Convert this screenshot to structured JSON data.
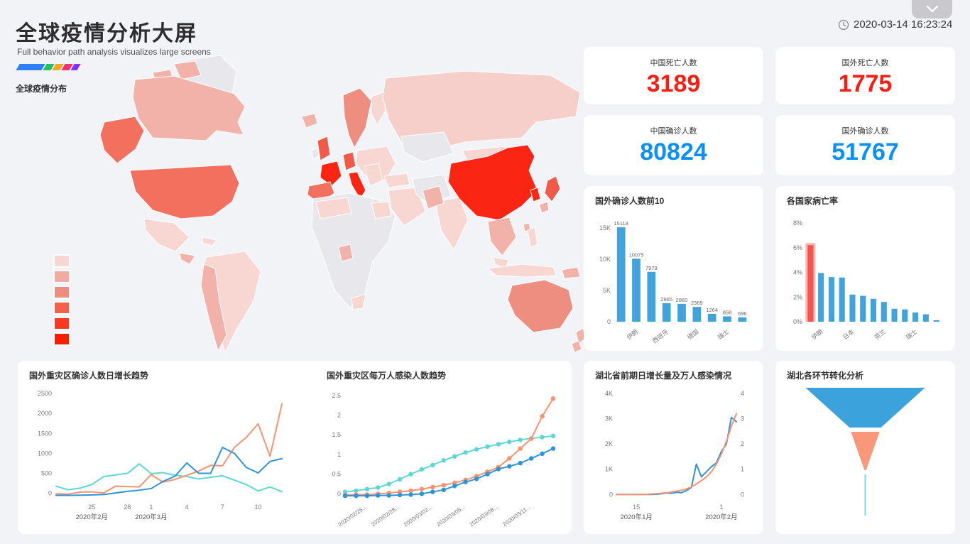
{
  "header": {
    "title": "全球疫情分析大屏",
    "subtitle": "Full behavior path analysis visualizes large screens",
    "section_label": "全球疫情分布",
    "timestamp": "2020-03-14 16:23:24"
  },
  "brand_bar_colors": [
    "#2f7ff7",
    "#22c35c",
    "#f5a623",
    "#f5326e",
    "#8b2ff5"
  ],
  "stats": [
    {
      "label": "中国死亡人数",
      "value": "3189",
      "color": "#fb1d10"
    },
    {
      "label": "国外死亡人数",
      "value": "1775",
      "color": "#fb1d10"
    },
    {
      "label": "中国确诊人数",
      "value": "80824",
      "color": "#0d90f5"
    },
    {
      "label": "国外确诊人数",
      "value": "51767",
      "color": "#0d90f5"
    }
  ],
  "map": {
    "legend_colors": [
      "#f8d6d2",
      "#f2aba3",
      "#ee8e80",
      "#f4604b",
      "#f93a20",
      "#f51f05"
    ]
  },
  "chart_data": [
    {
      "type": "bar",
      "title": "国外确诊人数前10",
      "categories": [
        "",
        "伊朗",
        "",
        "西班牙",
        "",
        "德国",
        "",
        "瑞士",
        ""
      ],
      "values": [
        15113,
        10075,
        7979,
        2965,
        2860,
        2369,
        1264,
        858,
        696
      ],
      "value_labels": [
        "15113",
        "10075",
        "7979",
        "2965",
        "2860",
        "2369",
        "1264",
        "858",
        "696"
      ],
      "yticks": [
        0,
        5000,
        10000,
        15000
      ],
      "ytick_labels": [
        "0",
        "5K",
        "10K",
        "15K"
      ],
      "ylim": [
        0,
        15800
      ],
      "bar_color": "#41a3dc",
      "show_values": true,
      "grid": false
    },
    {
      "type": "bar",
      "title": "各国家病亡率",
      "categories": [
        "",
        "伊朗",
        "",
        "",
        "日本",
        "",
        "",
        "荷兰",
        "",
        "",
        "瑞士",
        "",
        ""
      ],
      "values": [
        6.2,
        3.95,
        3.62,
        3.58,
        2.2,
        2.1,
        1.85,
        1.6,
        1.05,
        1.0,
        0.75,
        0.6,
        0.12
      ],
      "yticks": [
        0,
        2,
        4,
        6,
        8
      ],
      "ytick_labels": [
        "0%",
        "2%",
        "4%",
        "6%",
        "8%"
      ],
      "ylim": [
        0,
        8
      ],
      "bar_color": "#41a3dc",
      "show_values": false,
      "highlight": {
        "index": 0,
        "color": "#f4544e",
        "halo": "#fbb6b2"
      },
      "grid": false
    },
    {
      "type": "line",
      "title": "国外重灾区确诊人数日增长趋势",
      "x_count": 20,
      "xticks": [
        {
          "i": 3,
          "label": "25",
          "month": "2020年2月"
        },
        {
          "i": 6,
          "label": "28"
        },
        {
          "i": 8,
          "label": "1",
          "month": "2020年3月"
        },
        {
          "i": 11,
          "label": "4"
        },
        {
          "i": 14,
          "label": "7"
        },
        {
          "i": 17,
          "label": "10"
        }
      ],
      "yticks": [
        0,
        500,
        1000,
        1500,
        2000,
        2500
      ],
      "ytick_labels": [
        "0",
        "500",
        "1000",
        "1500",
        "2000",
        "2500"
      ],
      "ylim": [
        -130,
        2500
      ],
      "markers": false,
      "series": [
        {
          "color": "#5fd6d6",
          "values": [
            180,
            90,
            130,
            220,
            420,
            460,
            500,
            740,
            490,
            520,
            450,
            420,
            360,
            400,
            440,
            330,
            220,
            60,
            160,
            40
          ]
        },
        {
          "color": "#f8926f",
          "values": [
            -10,
            -20,
            30,
            40,
            10,
            180,
            170,
            160,
            470,
            280,
            350,
            450,
            560,
            700,
            690,
            1150,
            1400,
            1740,
            930,
            2240
          ]
        },
        {
          "color": "#2e94d8",
          "values": [
            -50,
            -50,
            -45,
            -40,
            -30,
            10,
            50,
            80,
            120,
            300,
            430,
            760,
            500,
            500,
            1150,
            1000,
            650,
            510,
            800,
            870
          ]
        }
      ]
    },
    {
      "type": "line",
      "title": "国外重灾区每万人感染人数趋势",
      "x_count": 20,
      "xlabels": [
        {
          "i": 2,
          "label": "2020/02/25..."
        },
        {
          "i": 5,
          "label": "2020/02/28..."
        },
        {
          "i": 8,
          "label": "2020/03/02..."
        },
        {
          "i": 11,
          "label": "2020/03/05..."
        },
        {
          "i": 14,
          "label": "2020/03/08..."
        },
        {
          "i": 17,
          "label": "2020/03/11..."
        }
      ],
      "yticks": [
        0,
        0.5,
        1,
        1.5,
        2,
        2.5
      ],
      "ytick_labels": [
        "0",
        "0.5",
        "1",
        "1.5",
        "2",
        "2.5"
      ],
      "ylim": [
        -0.12,
        2.55
      ],
      "markers": true,
      "series": [
        {
          "color": "#5fd6d6",
          "values": [
            0.05,
            0.08,
            0.12,
            0.16,
            0.25,
            0.37,
            0.5,
            0.62,
            0.73,
            0.85,
            0.95,
            1.05,
            1.13,
            1.2,
            1.26,
            1.32,
            1.37,
            1.41,
            1.44,
            1.47
          ]
        },
        {
          "color": "#f8926f",
          "values": [
            -0.03,
            -0.02,
            -0.02,
            0.0,
            0.02,
            0.05,
            0.08,
            0.12,
            0.17,
            0.22,
            0.28,
            0.35,
            0.45,
            0.56,
            0.68,
            0.9,
            1.15,
            1.4,
            1.97,
            2.42
          ]
        },
        {
          "color": "#2e94d8",
          "values": [
            -0.05,
            -0.05,
            -0.05,
            -0.04,
            -0.04,
            -0.03,
            -0.02,
            0.0,
            0.05,
            0.1,
            0.2,
            0.3,
            0.38,
            0.5,
            0.63,
            0.7,
            0.78,
            0.9,
            1.02,
            1.15
          ]
        }
      ]
    },
    {
      "type": "dual-line",
      "title": "湖北省前期日增长量及万人感染情况",
      "x_count": 25,
      "xticks": [
        {
          "i": 4,
          "label": "15",
          "month": "2020年1月"
        },
        {
          "i": 21,
          "label": "1",
          "month": "2020年2月"
        }
      ],
      "left_ticks": [
        0,
        1000,
        2000,
        3000,
        4000
      ],
      "left_tick_labels": [
        "0",
        "1K",
        "2K",
        "3K",
        "4K"
      ],
      "right_ticks": [
        0,
        1,
        2,
        3,
        4
      ],
      "right_tick_labels": [
        "0",
        "1",
        "2",
        "3",
        "4"
      ],
      "ylim_left": [
        -160,
        4000
      ],
      "ylim_right": [
        -0.16,
        4
      ],
      "series": [
        {
          "axis": "left",
          "color": "#2e94d8",
          "values": [
            0,
            0,
            0,
            0,
            0,
            0,
            0,
            0,
            10,
            30,
            60,
            50,
            90,
            70,
            150,
            280,
            1200,
            700,
            900,
            1100,
            1250,
            1700,
            2000,
            3050,
            2880
          ]
        },
        {
          "axis": "right",
          "color": "#f8926f",
          "values": [
            0,
            0,
            0,
            0,
            0,
            0,
            0.01,
            0.02,
            0.03,
            0.05,
            0.07,
            0.1,
            0.13,
            0.17,
            0.22,
            0.3,
            0.42,
            0.55,
            0.7,
            0.9,
            1.2,
            1.6,
            2.1,
            2.7,
            3.2
          ]
        }
      ]
    },
    {
      "type": "funnel",
      "title": "湖北各环节转化分析",
      "values": [
        100,
        24,
        1.4
      ],
      "colors": [
        "#3ba2dc",
        "#f8977a",
        "#6fd9e8"
      ]
    }
  ]
}
